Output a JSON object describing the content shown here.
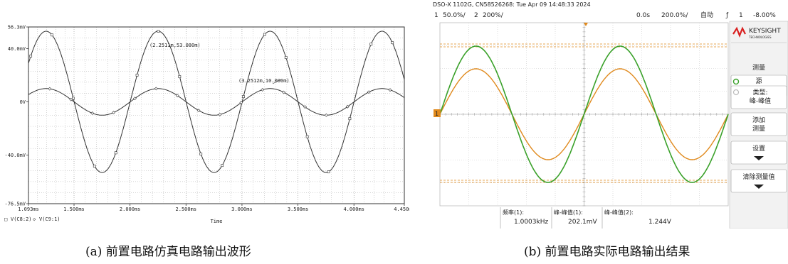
{
  "panel_a": {
    "caption": "(a) 前置电路仿真电路输出波形",
    "chart_data": {
      "type": "line",
      "xlabel": "Time",
      "xlim": [
        1.093,
        4.45
      ],
      "ylim": [
        -76.5,
        56.3
      ],
      "x_ticks": [
        "1.093ms",
        "1.500ms",
        "2.000ms",
        "2.500ms",
        "3.000ms",
        "3.500ms",
        "4.000ms",
        "4.450ms"
      ],
      "y_ticks": [
        "56.3mV",
        "40.0mV",
        "0V",
        "-40.0mV",
        "-76.5mV"
      ],
      "grid": true,
      "legend": [
        "V(C8:2)",
        "V(C9:1)"
      ],
      "series": [
        {
          "name": "V(C8:2)",
          "amplitude_mV": 53.1,
          "peak_time_ms": 2.2511,
          "period_ms": 1.0
        },
        {
          "name": "V(C9:1)",
          "amplitude_mV": 10.0,
          "peak_time_ms": 3.2512,
          "period_ms": 1.0
        }
      ],
      "annotations": [
        "(2.2511m,53.080m)",
        "(3.2512m,10.000m)"
      ]
    }
  },
  "panel_b": {
    "caption": "(b) 前置电路实际电路输出结果",
    "header_line": "DSO-X 1102G, CN58526268: Tue Apr 09 14:48:33 2024",
    "ch1_label": "1",
    "ch1_scale": "50.0%/",
    "ch2_label": "2",
    "ch2_scale": "200%/",
    "time_offset": "0.0s",
    "time_scale": "200.0%/",
    "mode": "自动",
    "trigger_symbol": "ƒ",
    "trigger_ch": "1",
    "trigger_level": "-8.00%",
    "brand": "KEYSIGHT",
    "brand_sub": "TECHNOLOGIES",
    "ch1_marker": "1",
    "menu": {
      "title": "测量",
      "source_label": "源",
      "source_value": "2",
      "type_label": "类型:",
      "type_value": "峰-峰值",
      "add_label": "添加",
      "add_label2": "测量",
      "settings_label": "设置",
      "clear_label": "清除测量值"
    },
    "readouts": [
      {
        "label": "频率(1):",
        "value": "1.0003kHz"
      },
      {
        "label": "峰-峰值(1):",
        "value": "202.1mV"
      },
      {
        "label": "峰-峰值(2):",
        "value": "1.244V"
      }
    ],
    "chart_data": {
      "type": "line",
      "x_divisions": 10,
      "y_divisions": 8,
      "series": [
        {
          "name": "CH1",
          "color": "#e08a1e",
          "vpp_mV": 202.1,
          "frequency_kHz": 1.0003,
          "cycles_visible": 2
        },
        {
          "name": "CH2",
          "color": "#3aa12a",
          "vpp_V": 1.244,
          "frequency_kHz": 1.0003,
          "cycles_visible": 2
        }
      ]
    },
    "colors": {
      "ch1": "#e08a1e",
      "ch2": "#3aa12a",
      "brand": "#d92020"
    }
  }
}
